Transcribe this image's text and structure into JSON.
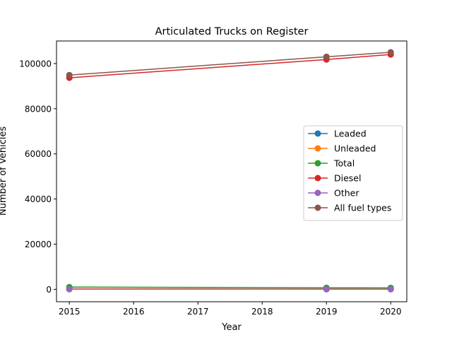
{
  "chart_data": {
    "type": "line",
    "title": "Articulated Trucks on Register",
    "xlabel": "Year",
    "ylabel": "Number of Vehicles",
    "x": [
      2015,
      2019,
      2020
    ],
    "xlim": [
      2014.8,
      2020.25
    ],
    "ylim": [
      -5500,
      110000
    ],
    "xticks": [
      2015,
      2016,
      2017,
      2018,
      2019,
      2020
    ],
    "yticks": [
      0,
      20000,
      40000,
      60000,
      80000,
      100000
    ],
    "xtick_labels": [
      "2015",
      "2016",
      "2017",
      "2018",
      "2019",
      "2020"
    ],
    "ytick_labels": [
      "0",
      "20000",
      "40000",
      "60000",
      "80000",
      "100000"
    ],
    "grid": false,
    "legend_position": "center-right",
    "series": [
      {
        "name": "Leaded",
        "color": "#1f77b4",
        "values": [
          60,
          30,
          25
        ]
      },
      {
        "name": "Unleaded",
        "color": "#ff7f0e",
        "values": [
          300,
          250,
          240
        ]
      },
      {
        "name": "Total",
        "color": "#2ca02c",
        "values": [
          1000,
          700,
          650
        ]
      },
      {
        "name": "Diesel",
        "color": "#d62728",
        "values": [
          93700,
          101800,
          104000
        ]
      },
      {
        "name": "Other",
        "color": "#9467bd",
        "values": [
          50,
          40,
          40
        ]
      },
      {
        "name": "All fuel types",
        "color": "#8c564b",
        "values": [
          94900,
          103000,
          105000
        ]
      }
    ]
  }
}
